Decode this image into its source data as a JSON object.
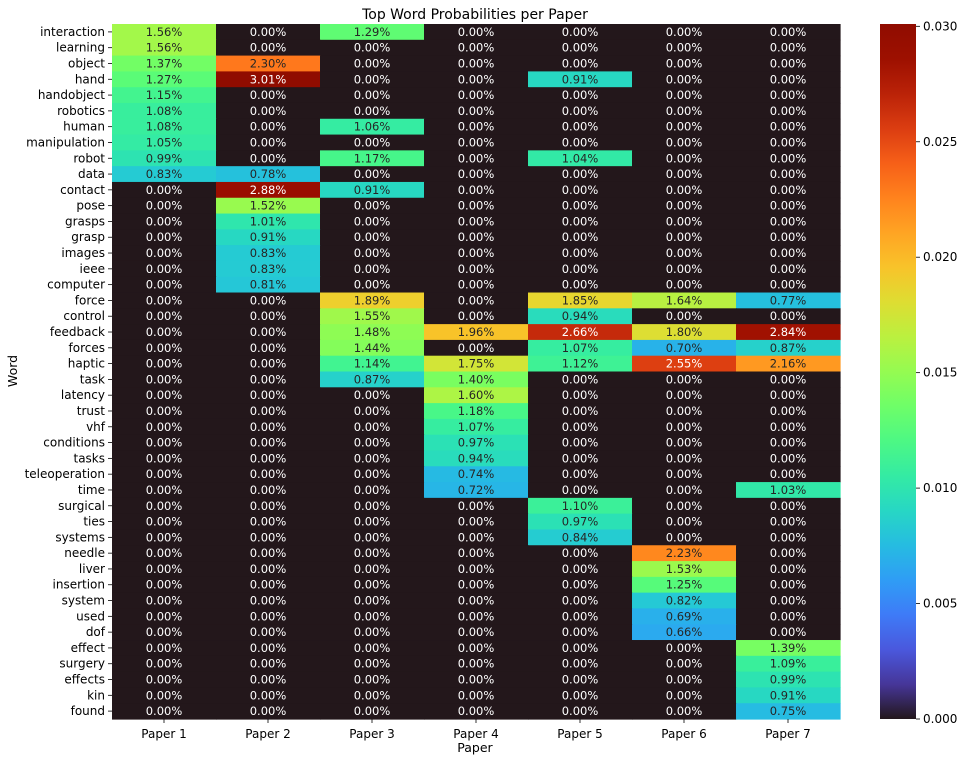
{
  "chart_data": {
    "type": "heatmap",
    "title": "Top Word Probabilities per Paper",
    "xlabel": "Paper",
    "ylabel": "Word",
    "colormap": "turbo",
    "color_range": [
      0,
      0.0301
    ],
    "colorbar_ticks": [
      "0.000",
      "0.005",
      "0.010",
      "0.015",
      "0.020",
      "0.025",
      "0.030"
    ],
    "columns": [
      "Paper 1",
      "Paper 2",
      "Paper 3",
      "Paper 4",
      "Paper 5",
      "Paper 6",
      "Paper 7"
    ],
    "rows": [
      "interaction",
      "learning",
      "object",
      "hand",
      "handobject",
      "robotics",
      "human",
      "manipulation",
      "robot",
      "data",
      "contact",
      "pose",
      "grasps",
      "grasp",
      "images",
      "ieee",
      "computer",
      "force",
      "control",
      "feedback",
      "forces",
      "haptic",
      "task",
      "latency",
      "trust",
      "vhf",
      "conditions",
      "tasks",
      "teleoperation",
      "time",
      "surgical",
      "ties",
      "systems",
      "needle",
      "liver",
      "insertion",
      "system",
      "used",
      "dof",
      "effect",
      "surgery",
      "effects",
      "kin",
      "found"
    ],
    "values": [
      [
        1.56,
        0.0,
        1.29,
        0.0,
        0.0,
        0.0,
        0.0
      ],
      [
        1.56,
        0.0,
        0.0,
        0.0,
        0.0,
        0.0,
        0.0
      ],
      [
        1.37,
        2.3,
        0.0,
        0.0,
        0.0,
        0.0,
        0.0
      ],
      [
        1.27,
        3.01,
        0.0,
        0.0,
        0.91,
        0.0,
        0.0
      ],
      [
        1.15,
        0.0,
        0.0,
        0.0,
        0.0,
        0.0,
        0.0
      ],
      [
        1.08,
        0.0,
        0.0,
        0.0,
        0.0,
        0.0,
        0.0
      ],
      [
        1.08,
        0.0,
        1.06,
        0.0,
        0.0,
        0.0,
        0.0
      ],
      [
        1.05,
        0.0,
        0.0,
        0.0,
        0.0,
        0.0,
        0.0
      ],
      [
        0.99,
        0.0,
        1.17,
        0.0,
        1.04,
        0.0,
        0.0
      ],
      [
        0.83,
        0.78,
        0.0,
        0.0,
        0.0,
        0.0,
        0.0
      ],
      [
        0.0,
        2.88,
        0.91,
        0.0,
        0.0,
        0.0,
        0.0
      ],
      [
        0.0,
        1.52,
        0.0,
        0.0,
        0.0,
        0.0,
        0.0
      ],
      [
        0.0,
        1.01,
        0.0,
        0.0,
        0.0,
        0.0,
        0.0
      ],
      [
        0.0,
        0.91,
        0.0,
        0.0,
        0.0,
        0.0,
        0.0
      ],
      [
        0.0,
        0.83,
        0.0,
        0.0,
        0.0,
        0.0,
        0.0
      ],
      [
        0.0,
        0.83,
        0.0,
        0.0,
        0.0,
        0.0,
        0.0
      ],
      [
        0.0,
        0.81,
        0.0,
        0.0,
        0.0,
        0.0,
        0.0
      ],
      [
        0.0,
        0.0,
        1.89,
        0.0,
        1.85,
        1.64,
        0.77
      ],
      [
        0.0,
        0.0,
        1.55,
        0.0,
        0.94,
        0.0,
        0.0
      ],
      [
        0.0,
        0.0,
        1.48,
        1.96,
        2.66,
        1.8,
        2.84
      ],
      [
        0.0,
        0.0,
        1.44,
        0.0,
        1.07,
        0.7,
        0.87
      ],
      [
        0.0,
        0.0,
        1.14,
        1.75,
        1.12,
        2.55,
        2.16
      ],
      [
        0.0,
        0.0,
        0.87,
        1.4,
        0.0,
        0.0,
        0.0
      ],
      [
        0.0,
        0.0,
        0.0,
        1.6,
        0.0,
        0.0,
        0.0
      ],
      [
        0.0,
        0.0,
        0.0,
        1.18,
        0.0,
        0.0,
        0.0
      ],
      [
        0.0,
        0.0,
        0.0,
        1.07,
        0.0,
        0.0,
        0.0
      ],
      [
        0.0,
        0.0,
        0.0,
        0.97,
        0.0,
        0.0,
        0.0
      ],
      [
        0.0,
        0.0,
        0.0,
        0.94,
        0.0,
        0.0,
        0.0
      ],
      [
        0.0,
        0.0,
        0.0,
        0.74,
        0.0,
        0.0,
        0.0
      ],
      [
        0.0,
        0.0,
        0.0,
        0.72,
        0.0,
        0.0,
        1.03
      ],
      [
        0.0,
        0.0,
        0.0,
        0.0,
        1.1,
        0.0,
        0.0
      ],
      [
        0.0,
        0.0,
        0.0,
        0.0,
        0.97,
        0.0,
        0.0
      ],
      [
        0.0,
        0.0,
        0.0,
        0.0,
        0.84,
        0.0,
        0.0
      ],
      [
        0.0,
        0.0,
        0.0,
        0.0,
        0.0,
        2.23,
        0.0
      ],
      [
        0.0,
        0.0,
        0.0,
        0.0,
        0.0,
        1.53,
        0.0
      ],
      [
        0.0,
        0.0,
        0.0,
        0.0,
        0.0,
        1.25,
        0.0
      ],
      [
        0.0,
        0.0,
        0.0,
        0.0,
        0.0,
        0.82,
        0.0
      ],
      [
        0.0,
        0.0,
        0.0,
        0.0,
        0.0,
        0.69,
        0.0
      ],
      [
        0.0,
        0.0,
        0.0,
        0.0,
        0.0,
        0.66,
        0.0
      ],
      [
        0.0,
        0.0,
        0.0,
        0.0,
        0.0,
        0.0,
        1.39
      ],
      [
        0.0,
        0.0,
        0.0,
        0.0,
        0.0,
        0.0,
        1.09
      ],
      [
        0.0,
        0.0,
        0.0,
        0.0,
        0.0,
        0.0,
        0.99
      ],
      [
        0.0,
        0.0,
        0.0,
        0.0,
        0.0,
        0.0,
        0.91
      ],
      [
        0.0,
        0.0,
        0.0,
        0.0,
        0.0,
        0.0,
        0.75
      ]
    ],
    "value_format": "percent_2dp",
    "grid": false,
    "legend": "colorbar-right"
  }
}
